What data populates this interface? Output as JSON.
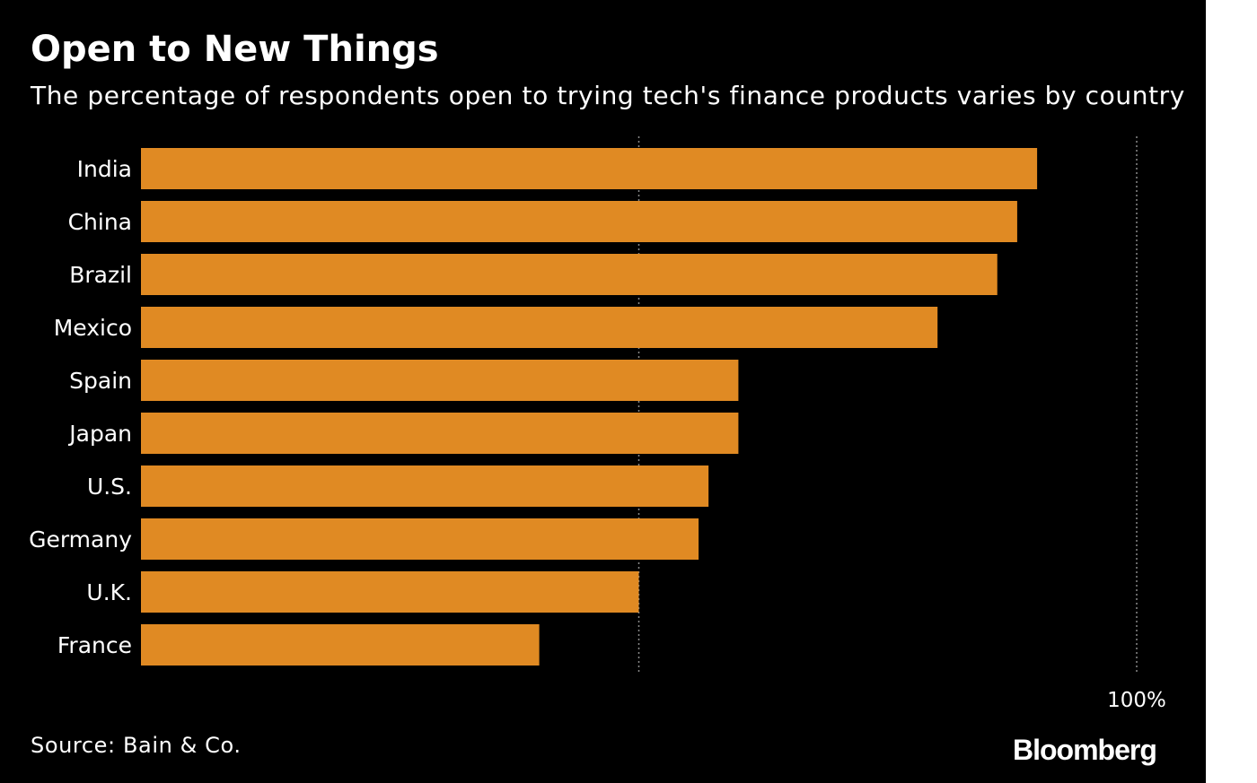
{
  "chart_data": {
    "type": "bar",
    "orientation": "horizontal",
    "title": "Open to New Things",
    "subtitle": "The percentage of respondents open to trying tech's finance products varies by country",
    "categories": [
      "India",
      "China",
      "Brazil",
      "Mexico",
      "Spain",
      "Japan",
      "U.S.",
      "Germany",
      "U.K.",
      "France"
    ],
    "values": [
      90,
      88,
      86,
      80,
      60,
      60,
      57,
      56,
      50,
      40
    ],
    "xlim": [
      0,
      100
    ],
    "gridlines_x": [
      50,
      100
    ],
    "x_tick_labels": [
      {
        "value": 100,
        "label": "100%"
      }
    ],
    "grid": true,
    "bar_color": "#e08a23"
  },
  "footer": {
    "source": "Source: Bain & Co.",
    "brand": "Bloomberg"
  },
  "colors": {
    "background": "#000000",
    "text": "#ffffff",
    "gridline": "#8a8a8a"
  }
}
